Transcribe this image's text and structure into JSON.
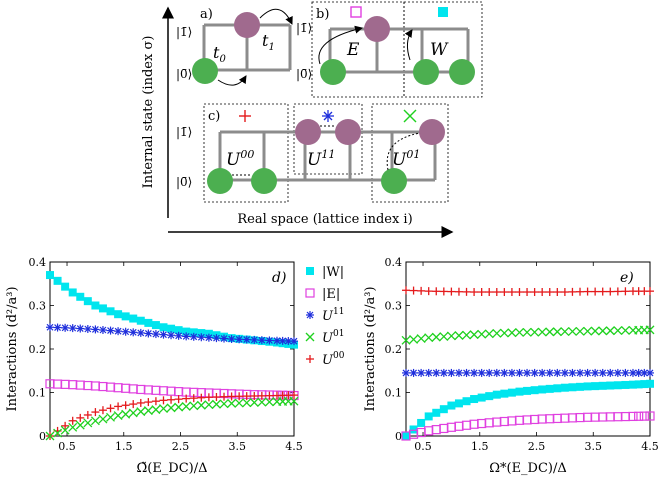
{
  "colors": {
    "W": "#00e5ee",
    "E": "#e040e0",
    "U11": "#1f2fdc",
    "U01": "#1fd11f",
    "U00": "#e41a1c",
    "lattice": "#8c8c8c",
    "green_site": "#4caf50",
    "purple_site": "#a06a8e"
  },
  "schematic": {
    "y_axis_label": "Internal state (index σ)",
    "x_axis_label": "Real space (lattice index i)",
    "ket_one": "|1̄⟩",
    "ket_zero": "|0̄⟩",
    "panels": {
      "a": {
        "label": "a)",
        "t0": "t",
        "t0_sub": "0",
        "t1": "t",
        "t1_sub": "1"
      },
      "b": {
        "label": "b)",
        "E": "E",
        "W": "W"
      },
      "c": {
        "label": "c)",
        "U00": "U",
        "U00_sup": "00",
        "U11": "U",
        "U11_sup": "11",
        "U01": "U",
        "U01_sup": "01"
      }
    }
  },
  "legend": [
    {
      "label": "|W|",
      "key": "W",
      "marker": "filled-square"
    },
    {
      "label": "|E|",
      "key": "E",
      "marker": "open-square"
    },
    {
      "label": "U",
      "sup": "11",
      "key": "U11",
      "marker": "asterisk"
    },
    {
      "label": "U",
      "sup": "01",
      "key": "U01",
      "marker": "x-cross"
    },
    {
      "label": "U",
      "sup": "00",
      "key": "U00",
      "marker": "plus"
    }
  ],
  "chart_data": [
    {
      "type": "scatter",
      "panel_label": "d)",
      "xlabel": "Ω̃(E_DC)/Δ",
      "ylabel": "Interactions (d²/a³)",
      "xlim": [
        0.2,
        4.5
      ],
      "ylim": [
        0,
        0.4
      ],
      "xticks": [
        "0.5",
        "1.5",
        "2.5",
        "3.5",
        "4.5"
      ],
      "yticks": [
        "0",
        "0.1",
        "0.2",
        "0.3",
        "0.4"
      ],
      "x": [
        0.2,
        0.6,
        1.0,
        1.4,
        1.8,
        2.2,
        2.6,
        3.0,
        3.4,
        3.8,
        4.2,
        4.5
      ],
      "series": [
        {
          "key": "W",
          "values": [
            0.37,
            0.33,
            0.3,
            0.28,
            0.265,
            0.25,
            0.24,
            0.235,
            0.225,
            0.22,
            0.215,
            0.21
          ]
        },
        {
          "key": "U11",
          "values": [
            0.25,
            0.248,
            0.245,
            0.241,
            0.237,
            0.233,
            0.229,
            0.226,
            0.223,
            0.221,
            0.219,
            0.218
          ]
        },
        {
          "key": "E",
          "values": [
            0.12,
            0.118,
            0.115,
            0.111,
            0.107,
            0.104,
            0.101,
            0.099,
            0.097,
            0.095,
            0.094,
            0.093
          ]
        },
        {
          "key": "U00",
          "values": [
            0.0,
            0.035,
            0.055,
            0.068,
            0.076,
            0.082,
            0.086,
            0.089,
            0.091,
            0.092,
            0.093,
            0.094
          ]
        },
        {
          "key": "U01",
          "values": [
            0.0,
            0.02,
            0.035,
            0.047,
            0.056,
            0.063,
            0.068,
            0.072,
            0.075,
            0.077,
            0.079,
            0.08
          ]
        }
      ]
    },
    {
      "type": "scatter",
      "panel_label": "e)",
      "xlabel": "Ω*(E_DC)/Δ",
      "ylabel": "Interactions (d²/a³)",
      "xlim": [
        0.2,
        4.5
      ],
      "ylim": [
        0,
        0.4
      ],
      "xticks": [
        "0.5",
        "1.5",
        "2.5",
        "3.5",
        "4.5"
      ],
      "yticks": [
        "0",
        "0.1",
        "0.2",
        "0.3",
        "0.4"
      ],
      "x": [
        0.2,
        0.6,
        1.0,
        1.4,
        1.8,
        2.2,
        2.6,
        3.0,
        3.4,
        3.8,
        4.2,
        4.5
      ],
      "series": [
        {
          "key": "U00",
          "values": [
            0.335,
            0.333,
            0.332,
            0.331,
            0.331,
            0.331,
            0.331,
            0.331,
            0.332,
            0.332,
            0.333,
            0.333
          ]
        },
        {
          "key": "U01",
          "values": [
            0.22,
            0.226,
            0.23,
            0.233,
            0.236,
            0.238,
            0.239,
            0.24,
            0.241,
            0.242,
            0.243,
            0.244
          ]
        },
        {
          "key": "U11",
          "values": [
            0.145,
            0.145,
            0.145,
            0.145,
            0.145,
            0.145,
            0.145,
            0.145,
            0.145,
            0.145,
            0.145,
            0.145
          ]
        },
        {
          "key": "W",
          "values": [
            0.0,
            0.045,
            0.07,
            0.085,
            0.095,
            0.102,
            0.107,
            0.111,
            0.114,
            0.116,
            0.118,
            0.12
          ]
        },
        {
          "key": "E",
          "values": [
            0.0,
            0.012,
            0.02,
            0.027,
            0.032,
            0.036,
            0.039,
            0.041,
            0.043,
            0.044,
            0.045,
            0.046
          ]
        }
      ]
    }
  ]
}
